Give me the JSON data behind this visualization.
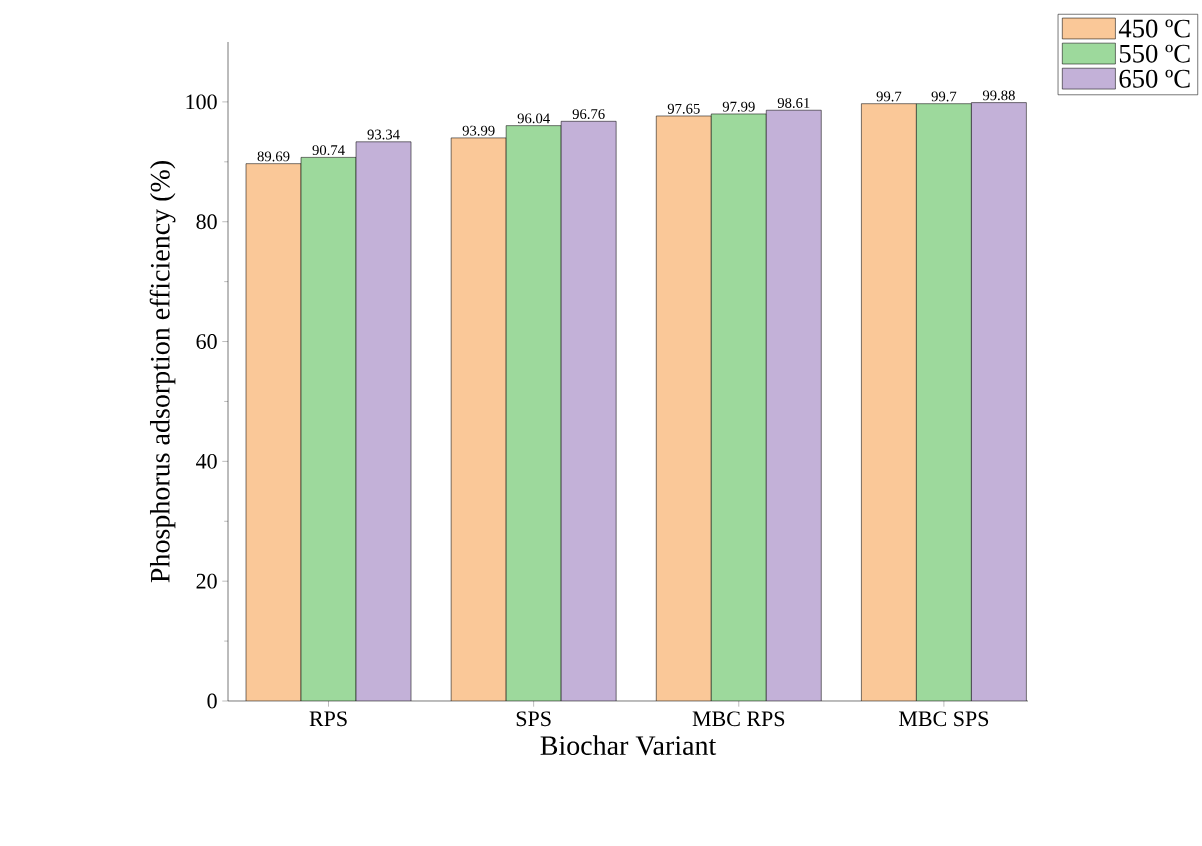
{
  "chart_data": {
    "type": "bar",
    "xlabel": "Biochar Variant",
    "ylabel": "Phosphorus adsorption efficiency (%)",
    "categories": [
      "RPS",
      "SPS",
      "MBC RPS",
      "MBC SPS"
    ],
    "series": [
      {
        "name": "450 ºC",
        "color": "#fac898",
        "values": [
          89.69,
          93.99,
          97.65,
          99.7
        ]
      },
      {
        "name": "550 ºC",
        "color": "#9dd99c",
        "values": [
          90.74,
          96.04,
          97.99,
          99.7
        ]
      },
      {
        "name": "650 ºC",
        "color": "#c3b1d8",
        "values": [
          93.34,
          96.76,
          98.61,
          99.88
        ]
      }
    ],
    "ylim": [
      0,
      110
    ],
    "yticks": [
      0,
      20,
      40,
      60,
      80,
      100
    ],
    "grid": false,
    "legend": "top right",
    "data_labels": true
  }
}
